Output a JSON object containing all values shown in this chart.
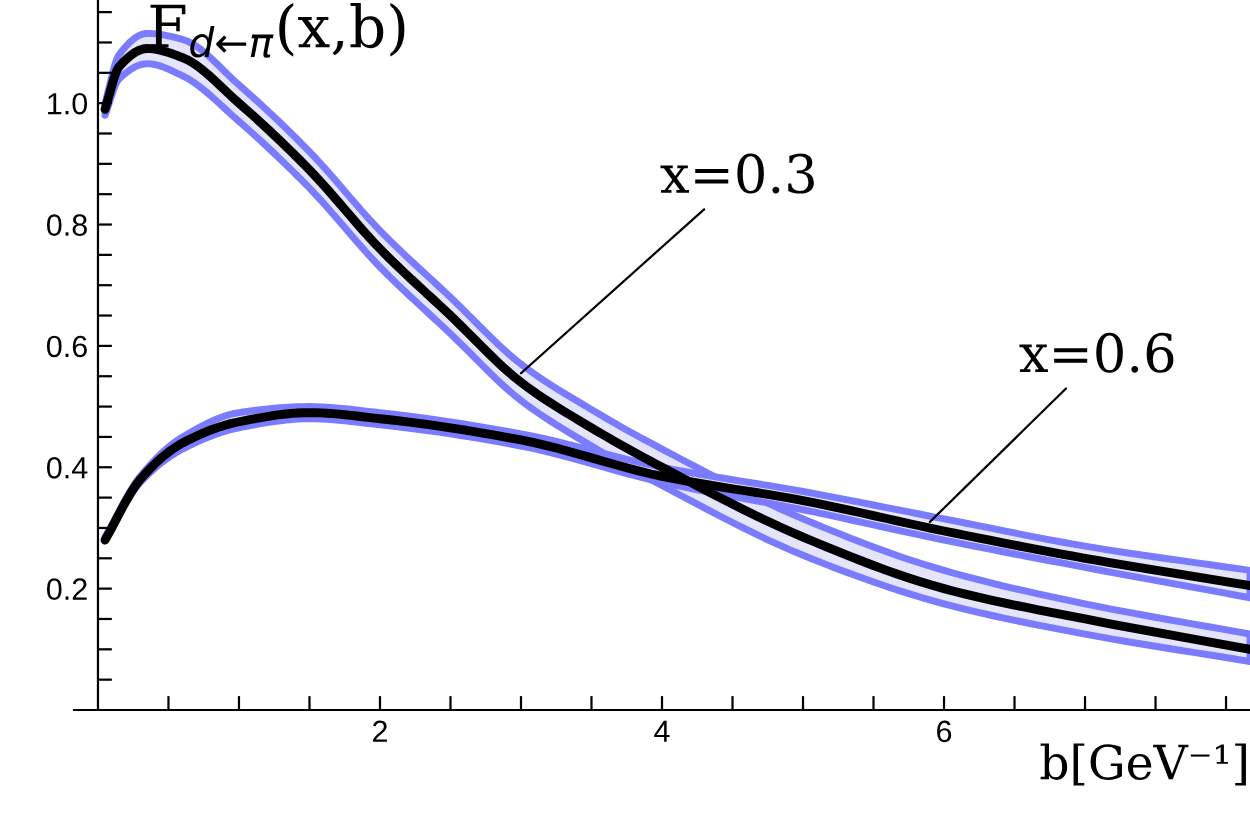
{
  "chart_data": {
    "type": "line",
    "title": "F$_{d←π}$(x,b)",
    "xlabel": "b[GeV⁻¹]",
    "xlim": [
      -0.17,
      8.17
    ],
    "ylim": [
      0,
      1.17
    ],
    "xticks": [
      {
        "value": 0.5,
        "label": null
      },
      {
        "value": 1,
        "label": null
      },
      {
        "value": 1.5,
        "label": null
      },
      2,
      {
        "value": 2.5,
        "label": null
      },
      {
        "value": 3,
        "label": null
      },
      {
        "value": 3.5,
        "label": null
      },
      4,
      {
        "value": 4.5,
        "label": null
      },
      {
        "value": 5,
        "label": null
      },
      {
        "value": 5.5,
        "label": null
      },
      6,
      {
        "value": 6.5,
        "label": null
      },
      {
        "value": 7,
        "label": null
      },
      {
        "value": 7.5,
        "label": null
      },
      {
        "value": 8,
        "label": null
      }
    ],
    "yticks": [
      {
        "value": 0.05,
        "label": null
      },
      {
        "value": 0.1,
        "label": null
      },
      {
        "value": 0.15,
        "label": null
      },
      0.2,
      {
        "value": 0.25,
        "label": null
      },
      {
        "value": 0.3,
        "label": null
      },
      {
        "value": 0.35,
        "label": null
      },
      0.4,
      {
        "value": 0.45,
        "label": null
      },
      {
        "value": 0.5,
        "label": null
      },
      {
        "value": 0.55,
        "label": null
      },
      0.6,
      {
        "value": 0.65,
        "label": null
      },
      {
        "value": 0.7,
        "label": null
      },
      {
        "value": 0.75,
        "label": null
      },
      0.8,
      {
        "value": 0.85,
        "label": null
      },
      {
        "value": 0.9,
        "label": null
      },
      {
        "value": 0.95,
        "label": null
      },
      {
        "value": 1.0,
        "label": "1.0"
      },
      {
        "value": 1.05,
        "label": null
      },
      {
        "value": 1.1,
        "label": null
      },
      {
        "value": 1.15,
        "label": null
      }
    ],
    "grid": false,
    "marker": "none",
    "line_style": "solid",
    "series": [
      {
        "color": "#000000",
        "x": [
          0.05,
          0.15,
          0.35,
          0.6,
          1.0,
          1.5,
          2.0,
          2.5,
          3.0,
          3.5,
          4.0,
          5.0,
          6.0,
          7.0,
          8.17
        ],
        "values": [
          0.99,
          1.06,
          1.09,
          1.075,
          1.0,
          0.89,
          0.76,
          0.65,
          0.54,
          0.465,
          0.4,
          0.285,
          0.2,
          0.15,
          0.1
        ],
        "lower": [
          0.98,
          1.04,
          1.065,
          1.045,
          0.97,
          0.86,
          0.73,
          0.62,
          0.51,
          0.435,
          0.37,
          0.255,
          0.175,
          0.125,
          0.08
        ],
        "upper": [
          1.0,
          1.08,
          1.115,
          1.105,
          1.03,
          0.92,
          0.79,
          0.68,
          0.57,
          0.495,
          0.43,
          0.315,
          0.23,
          0.175,
          0.125
        ]
      },
      {
        "color": "#000000",
        "x": [
          0.05,
          0.3,
          0.6,
          1.0,
          1.5,
          2.0,
          3.0,
          4.0,
          5.0,
          6.0,
          7.0,
          8.17
        ],
        "values": [
          0.28,
          0.38,
          0.44,
          0.475,
          0.49,
          0.48,
          0.445,
          0.385,
          0.345,
          0.295,
          0.25,
          0.205
        ],
        "lower": [
          0.28,
          0.375,
          0.43,
          0.465,
          0.48,
          0.47,
          0.435,
          0.375,
          0.33,
          0.28,
          0.235,
          0.185
        ],
        "upper": [
          0.285,
          0.385,
          0.45,
          0.49,
          0.5,
          0.49,
          0.455,
          0.4,
          0.36,
          0.315,
          0.27,
          0.23
        ]
      }
    ],
    "annotations": [
      {
        "text": "x=0.3",
        "x": 3.0,
        "y": 0.555
      },
      {
        "text": "x=0.6",
        "x": 5.9,
        "y": 0.31
      }
    ]
  }
}
